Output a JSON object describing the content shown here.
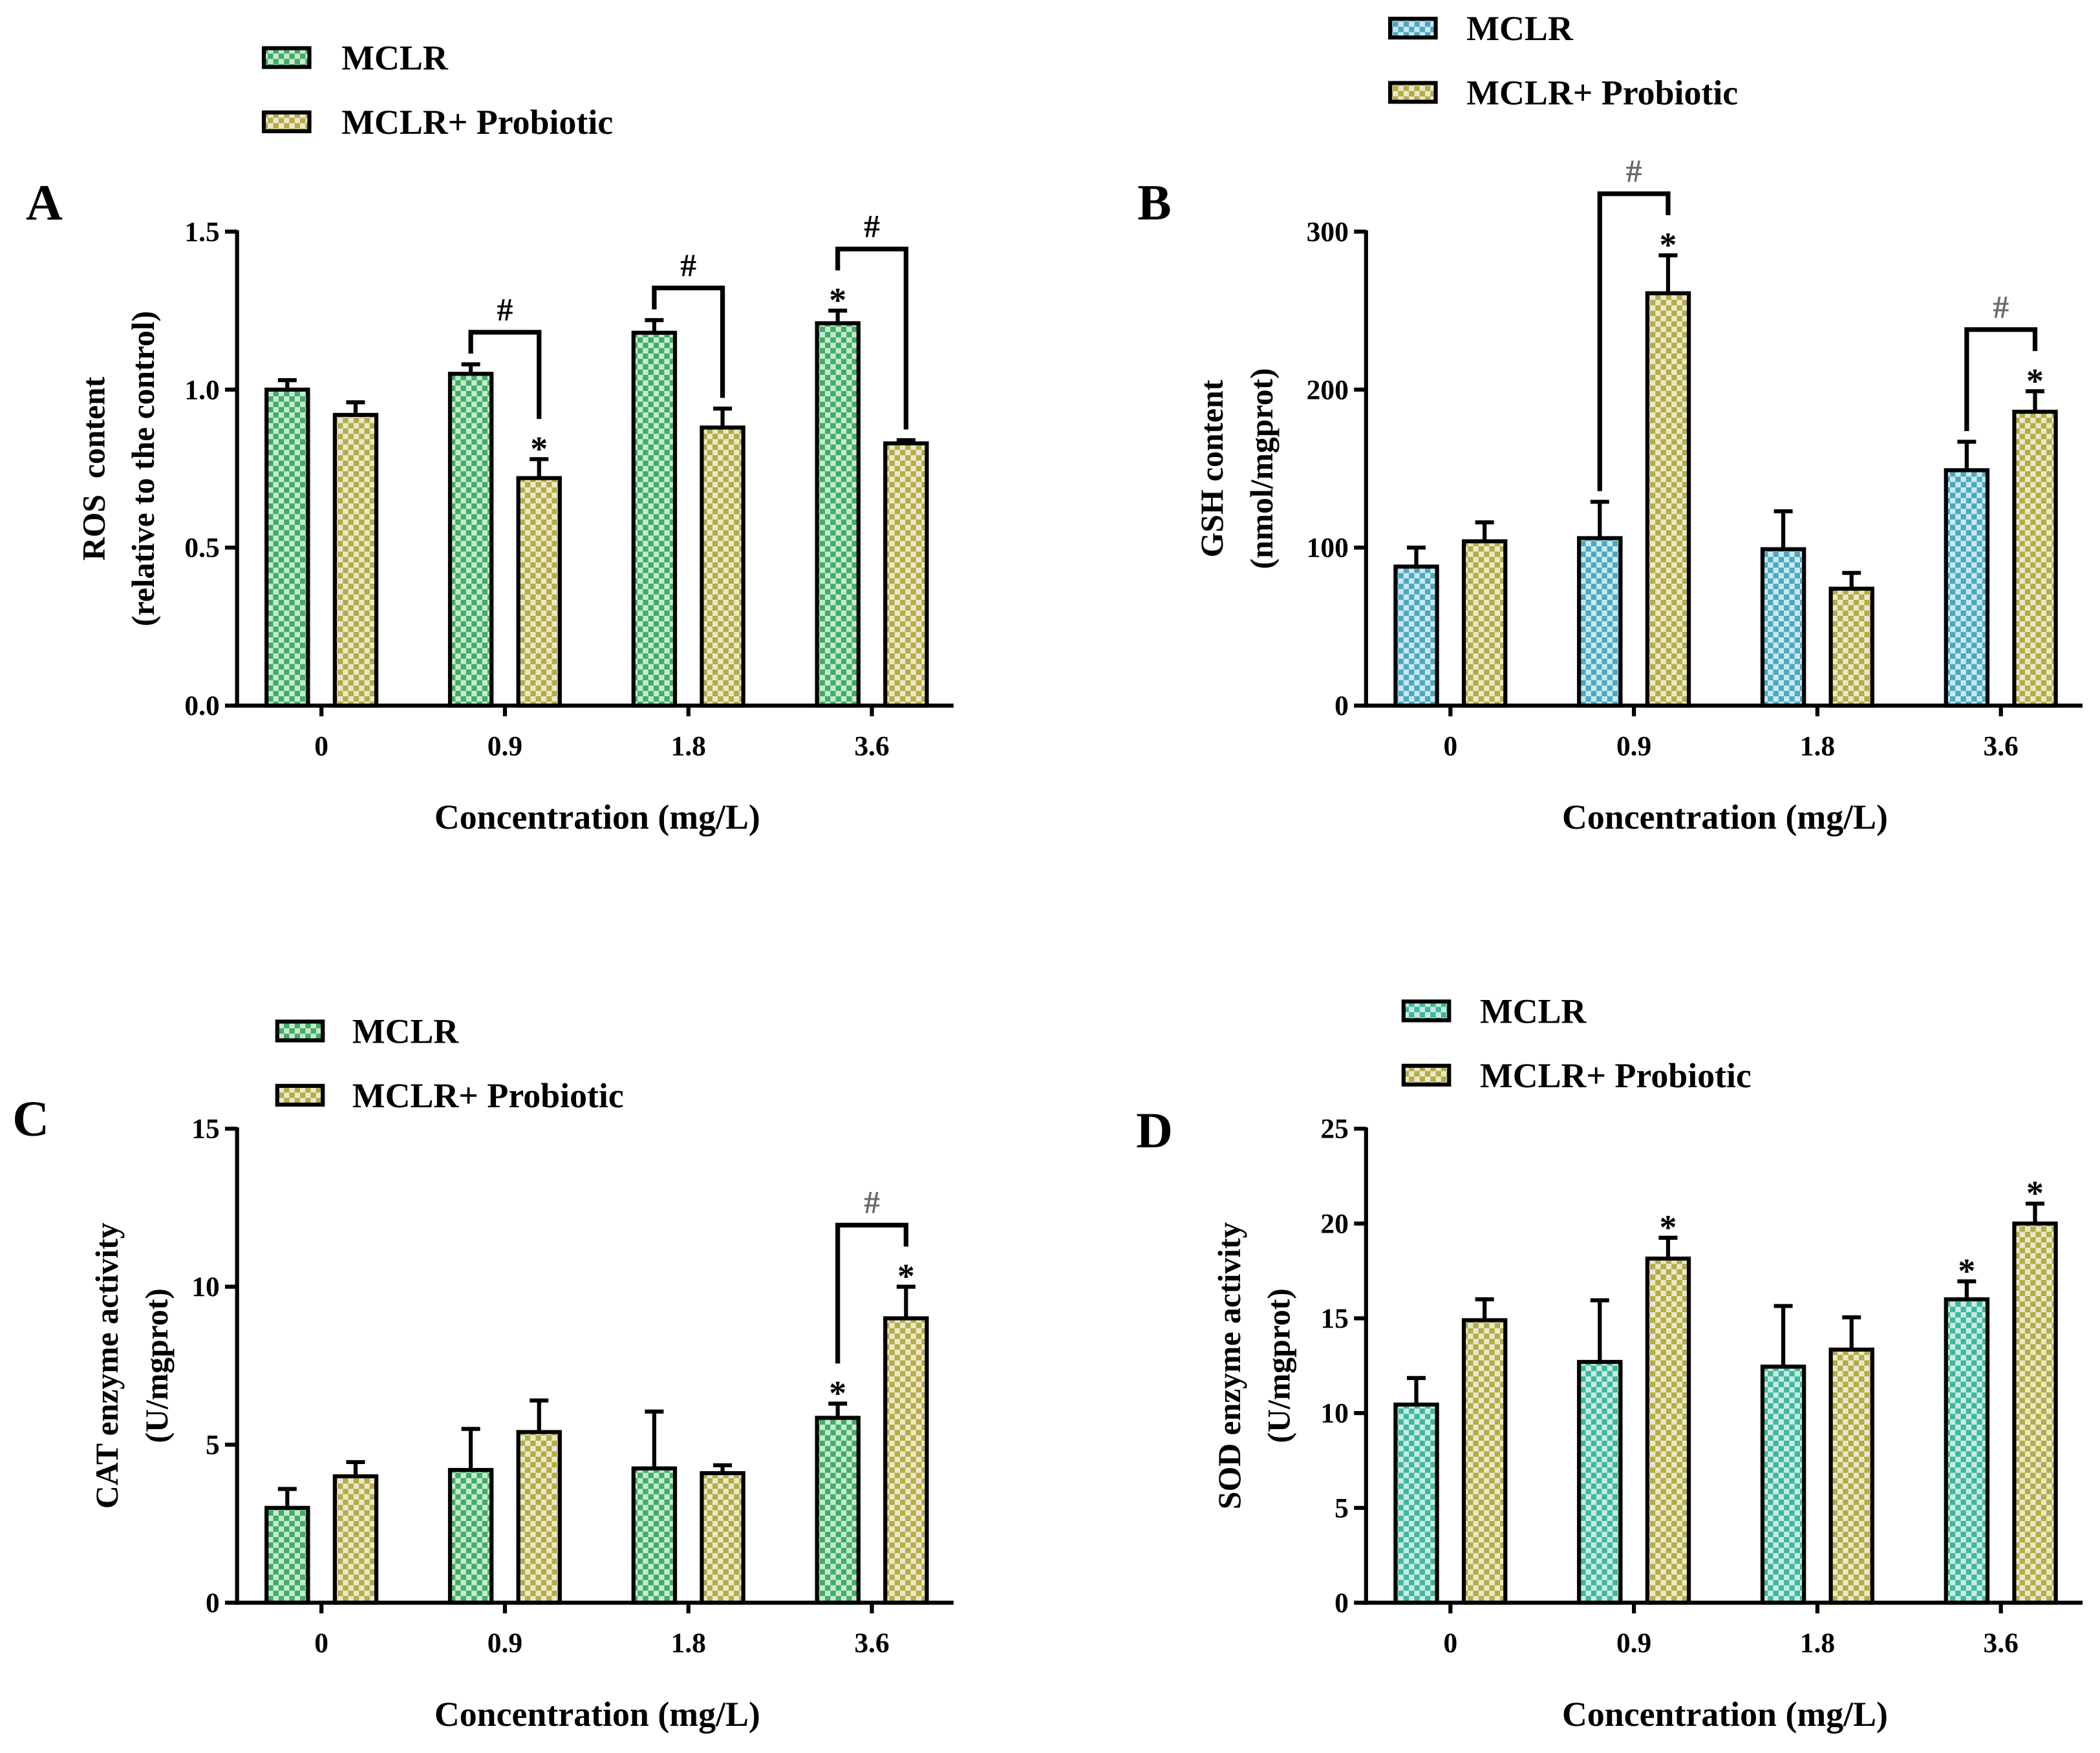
{
  "chart_data": [
    {
      "panel_label": "A",
      "type": "bar",
      "categories": [
        "0",
        "0.9",
        "1.8",
        "3.6"
      ],
      "xlabel": "Concentration (mg/L)",
      "ylabel": [
        "ROS  content",
        "(relative to the control)"
      ],
      "ylim": [
        0,
        1.5
      ],
      "yticks": [
        "0.0",
        "0.5",
        "1.0",
        "1.5"
      ],
      "significance_marker": "*",
      "comparison_label": "#",
      "comparison_color": "#000000",
      "comparison": [
        false,
        true,
        true,
        true
      ],
      "series": [
        {
          "name": "MCLR",
          "color": "#3fae63",
          "values": [
            1.0,
            1.05,
            1.18,
            1.21
          ],
          "errors": [
            0.03,
            0.03,
            0.04,
            0.04
          ],
          "significant": [
            false,
            false,
            false,
            true
          ]
        },
        {
          "name": "MCLR+ Probiotic",
          "color": "#b4ac45",
          "values": [
            0.92,
            0.72,
            0.88,
            0.83
          ],
          "errors": [
            0.04,
            0.06,
            0.06,
            0.01
          ],
          "significant": [
            false,
            true,
            false,
            false
          ]
        }
      ]
    },
    {
      "panel_label": "B",
      "type": "bar",
      "categories": [
        "0",
        "0.9",
        "1.8",
        "3.6"
      ],
      "xlabel": "Concentration (mg/L)",
      "ylabel": [
        "GSH content",
        "(nmol/mgprot)"
      ],
      "ylim": [
        0,
        300
      ],
      "yticks": [
        "0",
        "100",
        "200",
        "300"
      ],
      "significance_marker": "*",
      "comparison_label": "#",
      "comparison_color": "#6b6b6b",
      "comparison": [
        false,
        true,
        false,
        true
      ],
      "series": [
        {
          "name": "MCLR",
          "color": "#4aa9c2",
          "values": [
            88,
            106,
            99,
            149
          ],
          "errors": [
            12,
            23,
            24,
            18
          ],
          "significant": [
            false,
            false,
            false,
            false
          ]
        },
        {
          "name": "MCLR+ Probiotic",
          "color": "#b4ac45",
          "values": [
            104,
            261,
            74,
            186
          ],
          "errors": [
            12,
            24,
            10,
            13
          ],
          "significant": [
            false,
            true,
            false,
            true
          ]
        }
      ]
    },
    {
      "panel_label": "C",
      "type": "bar",
      "categories": [
        "0",
        "0.9",
        "1.8",
        "3.6"
      ],
      "xlabel": "Concentration (mg/L)",
      "ylabel": [
        "CAT enzyme activity",
        "(U/mgprot)"
      ],
      "ylim": [
        0,
        15
      ],
      "yticks": [
        "0",
        "5",
        "10",
        "15"
      ],
      "significance_marker": "*",
      "comparison_label": "#",
      "comparison_color": "#6b6b6b",
      "comparison": [
        false,
        false,
        false,
        true
      ],
      "series": [
        {
          "name": "MCLR",
          "color": "#3fae63",
          "values": [
            3.0,
            4.2,
            4.25,
            5.85
          ],
          "errors": [
            0.6,
            1.3,
            1.8,
            0.45
          ],
          "significant": [
            false,
            false,
            false,
            true
          ]
        },
        {
          "name": "MCLR+ Probiotic",
          "color": "#b4ac45",
          "values": [
            4.0,
            5.4,
            4.1,
            9.0
          ],
          "errors": [
            0.45,
            1.0,
            0.25,
            1.0
          ],
          "significant": [
            false,
            false,
            false,
            true
          ]
        }
      ]
    },
    {
      "panel_label": "D",
      "type": "bar",
      "categories": [
        "0",
        "0.9",
        "1.8",
        "3.6"
      ],
      "xlabel": "Concentration (mg/L)",
      "ylabel": [
        "SOD enzyme activity",
        "(U/mgprot)"
      ],
      "ylim": [
        0,
        25
      ],
      "yticks": [
        "0",
        "5",
        "10",
        "15",
        "20",
        "25"
      ],
      "significance_marker": "*",
      "comparison": [
        false,
        false,
        false,
        false
      ],
      "series": [
        {
          "name": "MCLR",
          "color": "#3db89b",
          "values": [
            10.45,
            12.7,
            12.45,
            16.0
          ],
          "errors": [
            1.4,
            3.25,
            3.2,
            0.95
          ],
          "significant": [
            false,
            false,
            false,
            true
          ]
        },
        {
          "name": "MCLR+ Probiotic",
          "color": "#b4ac45",
          "values": [
            14.9,
            18.15,
            13.35,
            20.0
          ],
          "errors": [
            1.1,
            1.1,
            1.7,
            1.05
          ],
          "significant": [
            false,
            true,
            false,
            true
          ]
        }
      ]
    }
  ]
}
